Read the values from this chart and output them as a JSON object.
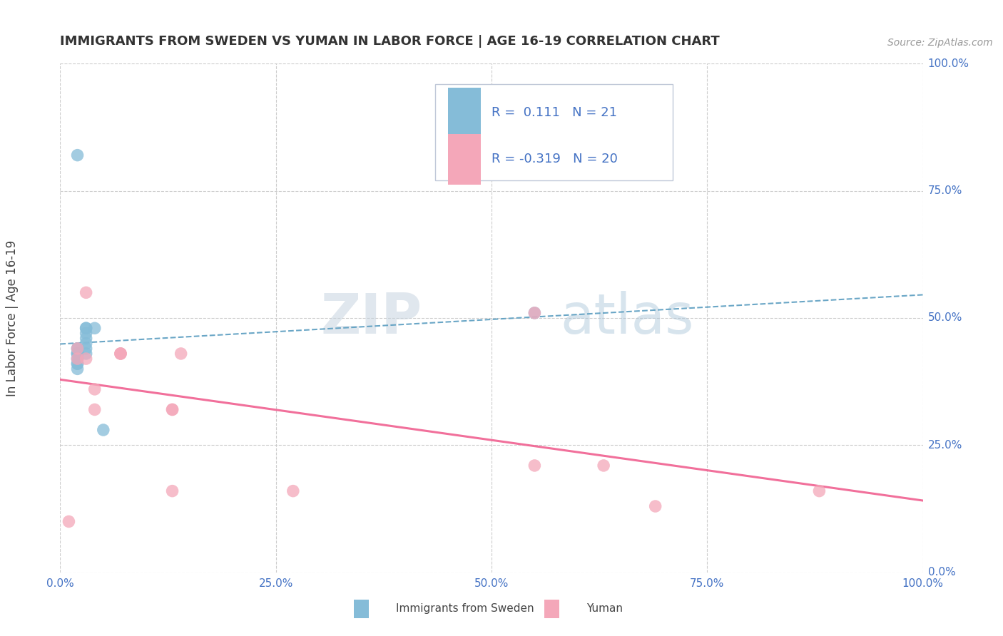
{
  "title": "IMMIGRANTS FROM SWEDEN VS YUMAN IN LABOR FORCE | AGE 16-19 CORRELATION CHART",
  "source_text": "Source: ZipAtlas.com",
  "ylabel": "In Labor Force | Age 16-19",
  "r1": 0.111,
  "n1": 21,
  "r2": -0.319,
  "n2": 20,
  "xlim": [
    0.0,
    1.0
  ],
  "ylim": [
    0.0,
    1.0
  ],
  "xticks": [
    0.0,
    0.25,
    0.5,
    0.75,
    1.0
  ],
  "yticks": [
    0.0,
    0.25,
    0.5,
    0.75,
    1.0
  ],
  "xticklabels": [
    "0.0%",
    "25.0%",
    "50.0%",
    "75.0%",
    "100.0%"
  ],
  "yticklabels": [
    "0.0%",
    "25.0%",
    "50.0%",
    "75.0%",
    "100.0%"
  ],
  "blue_color": "#85bcd8",
  "pink_color": "#f4a7b9",
  "blue_line_color": "#5a9dc0",
  "pink_line_color": "#f06090",
  "legend_label_1": "Immigrants from Sweden",
  "legend_label_2": "Yuman",
  "sweden_x": [
    0.02,
    0.02,
    0.02,
    0.02,
    0.02,
    0.02,
    0.02,
    0.02,
    0.02,
    0.02,
    0.02,
    0.03,
    0.03,
    0.03,
    0.03,
    0.03,
    0.03,
    0.03,
    0.04,
    0.05,
    0.55
  ],
  "sweden_y": [
    0.82,
    0.44,
    0.44,
    0.43,
    0.43,
    0.43,
    0.42,
    0.42,
    0.41,
    0.41,
    0.4,
    0.48,
    0.48,
    0.47,
    0.46,
    0.45,
    0.44,
    0.43,
    0.48,
    0.28,
    0.51
  ],
  "yuman_x": [
    0.01,
    0.02,
    0.02,
    0.03,
    0.03,
    0.04,
    0.04,
    0.07,
    0.07,
    0.07,
    0.13,
    0.13,
    0.13,
    0.14,
    0.27,
    0.55,
    0.55,
    0.63,
    0.69,
    0.88
  ],
  "yuman_y": [
    0.1,
    0.44,
    0.42,
    0.55,
    0.42,
    0.36,
    0.32,
    0.43,
    0.43,
    0.43,
    0.16,
    0.32,
    0.32,
    0.43,
    0.16,
    0.51,
    0.21,
    0.21,
    0.13,
    0.16
  ],
  "grid_color": "#cccccc",
  "tick_label_color": "#4472c4",
  "title_color": "#333333",
  "source_color": "#999999",
  "ylabel_color": "#444444",
  "watermark_color": "#d0d8e8",
  "legend_text_color": "#4472c4",
  "legend_border_color": "#c0c8d8"
}
